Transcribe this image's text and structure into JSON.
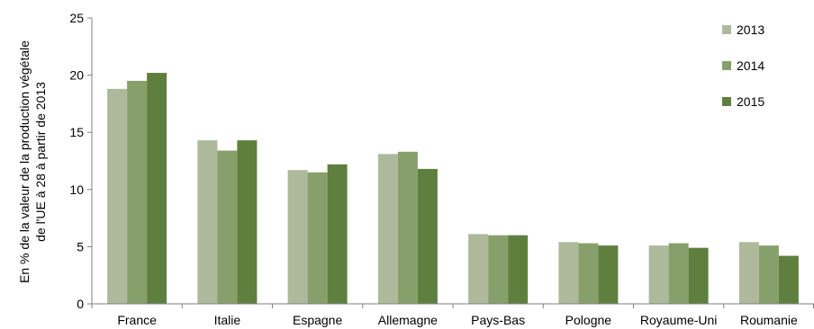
{
  "chart_data": {
    "type": "bar",
    "title": "",
    "ylabel": [
      "En % de la valeur de la production végétale",
      "de l'UE à 28 à partir de 2013"
    ],
    "xlabel": "",
    "ylim": [
      0,
      25
    ],
    "yticks": [
      0,
      5,
      10,
      15,
      20,
      25
    ],
    "grid": false,
    "legend_position": "top-right",
    "categories": [
      "France",
      "Italie",
      "Espagne",
      "Allemagne",
      "Pays-Bas",
      "Pologne",
      "Royaume-Uni",
      "Roumanie"
    ],
    "series": [
      {
        "name": "2013",
        "color": "#adb99a",
        "values": [
          18.8,
          14.3,
          11.7,
          13.1,
          6.1,
          5.4,
          5.1,
          5.4
        ]
      },
      {
        "name": "2014",
        "color": "#87a06b",
        "values": [
          19.5,
          13.4,
          11.5,
          13.3,
          6.0,
          5.3,
          5.3,
          5.1
        ]
      },
      {
        "name": "2015",
        "color": "#5f7f3f",
        "values": [
          20.2,
          14.3,
          12.2,
          11.8,
          6.0,
          5.1,
          4.9,
          4.2
        ]
      }
    ]
  }
}
